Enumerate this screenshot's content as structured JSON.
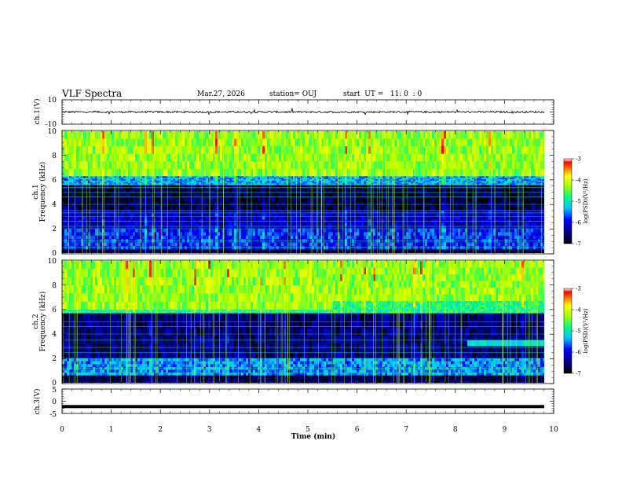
{
  "header": {
    "title": "VLF Spectra",
    "date": "Mar.27, 2026",
    "station": "station= OUJ",
    "start": "start  UT =   11: 0  : 0"
  },
  "chart_data": [
    {
      "type": "line",
      "panel": "ch1-waveform",
      "ylabel": "ch.1(V)",
      "ylim": [
        -10,
        10
      ],
      "yticks": [
        "10",
        "-10"
      ],
      "xlim": [
        0,
        10
      ],
      "series": [
        {
          "values_description_free": true,
          "baseline": 0,
          "amplitude_range": [
            -3,
            3
          ]
        }
      ]
    },
    {
      "type": "heatmap",
      "panel": "ch1-spectrogram",
      "ylabel": "ch.1\nFrequency (kHz)",
      "ylabel_line1": "ch.1",
      "ylabel_line2": "Frequency (kHz)",
      "ylim": [
        0,
        10
      ],
      "yticks": [
        "0",
        "2",
        "4",
        "6",
        "8",
        "10"
      ],
      "xlim": [
        0,
        9.85
      ],
      "colorbar": {
        "label": "log(PSD)(V²/Hz)",
        "range": [
          -7,
          -3
        ],
        "ticks": [
          "-3",
          "-4",
          "-5",
          "-6",
          "-7"
        ]
      },
      "bands": [
        {
          "from_khz": 6.3,
          "to_khz": 10,
          "level": -4.3
        },
        {
          "from_khz": 5.6,
          "to_khz": 6.3,
          "level": -5.4
        },
        {
          "from_khz": 3.5,
          "to_khz": 5.6,
          "level": -6.7
        },
        {
          "from_khz": 2.0,
          "to_khz": 3.5,
          "level": -6.2
        },
        {
          "from_khz": 0.3,
          "to_khz": 2.0,
          "level": -5.8
        },
        {
          "from_khz": 0,
          "to_khz": 0.3,
          "level": -6.8
        }
      ],
      "lines_khz": [
        0.5,
        1.0,
        2.0,
        2.2,
        2.6,
        3.0,
        3.3,
        3.5,
        4.0,
        4.6,
        5.0,
        5.4,
        5.6
      ]
    },
    {
      "type": "heatmap",
      "panel": "ch2-spectrogram",
      "ylabel_line1": "ch.2",
      "ylabel_line2": "Frequency (kHz)",
      "ylim": [
        0,
        10
      ],
      "yticks": [
        "0",
        "2",
        "4",
        "6",
        "8",
        "10"
      ],
      "xlim": [
        0,
        9.85
      ],
      "colorbar": {
        "label": "log(PSD)(V²/Hz)",
        "range": [
          -7,
          -3
        ],
        "ticks": [
          "-3",
          "-4",
          "-5",
          "-6",
          "-7"
        ]
      },
      "bands": [
        {
          "from_khz": 6.0,
          "to_khz": 10,
          "level": -4.3
        },
        {
          "from_khz": 5.7,
          "to_khz": 6.0,
          "level": -4.8
        },
        {
          "from_khz": 2.0,
          "to_khz": 5.7,
          "level": -6.5
        },
        {
          "from_khz": 0.6,
          "to_khz": 2.0,
          "level": -5.5
        },
        {
          "from_khz": 0,
          "to_khz": 0.6,
          "level": -6.7
        }
      ],
      "feature_step": {
        "time_min": 5.5,
        "before_khz": 6.0,
        "after_khz": 6.7
      },
      "feature_band": {
        "from_min": 8.2,
        "to_min": 9.85,
        "from_khz": 3.0,
        "to_khz": 3.5
      },
      "lines_khz": [
        0.8,
        1.2,
        2.0,
        2.5,
        2.9,
        3.5,
        4.0,
        4.6,
        5.0
      ]
    },
    {
      "type": "line",
      "panel": "ch3-waveform",
      "ylabel": "ch.3(V)",
      "ylim": [
        -5,
        5
      ],
      "yticks": [
        "5",
        "0",
        "-5"
      ],
      "xlim": [
        0,
        10
      ],
      "xticks": [
        "0",
        "1",
        "2",
        "3",
        "4",
        "5",
        "6",
        "7",
        "8",
        "9",
        "10"
      ],
      "xlabel": "Time  (min)",
      "series": [
        {
          "constant": -2.2
        }
      ]
    }
  ],
  "colors": {
    "axis": "#000000",
    "trace": "#000000"
  }
}
